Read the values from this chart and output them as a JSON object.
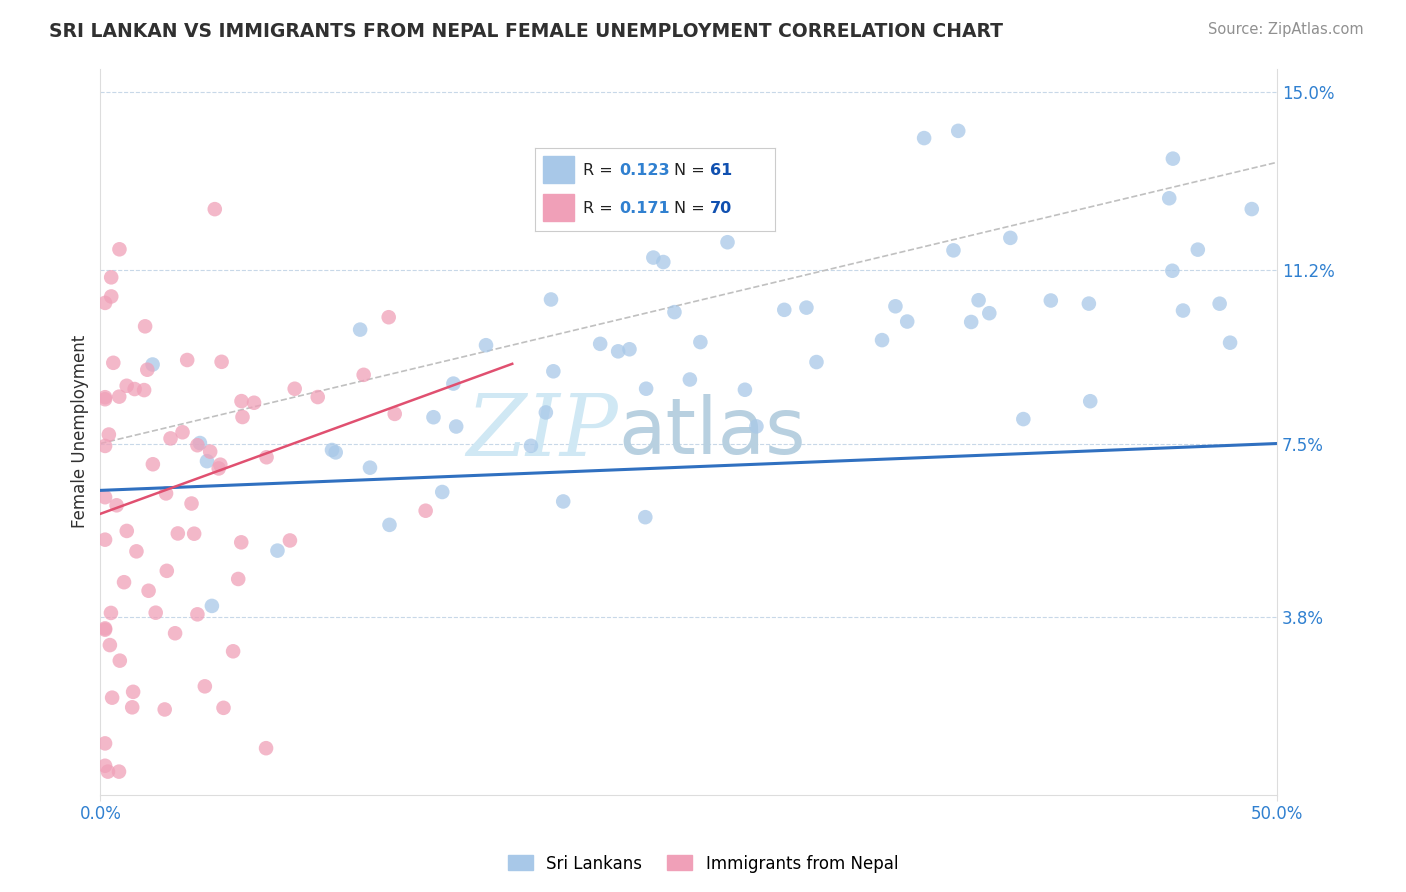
{
  "title": "SRI LANKAN VS IMMIGRANTS FROM NEPAL FEMALE UNEMPLOYMENT CORRELATION CHART",
  "source": "Source: ZipAtlas.com",
  "ylabel": "Female Unemployment",
  "xlim": [
    0.0,
    0.5
  ],
  "ylim": [
    0.0,
    0.155
  ],
  "yticks": [
    0.038,
    0.075,
    0.112,
    0.15
  ],
  "ytick_labels": [
    "3.8%",
    "7.5%",
    "11.2%",
    "15.0%"
  ],
  "xtick_labels": [
    "0.0%",
    "50.0%"
  ],
  "background_color": "#ffffff",
  "grid_color": "#c8d8e8",
  "sri_lankans_color": "#a8c8e8",
  "nepal_color": "#f0a0b8",
  "sri_line_color": "#3070c0",
  "nepal_line_color": "#e05070",
  "legend_R_color": "#3080d0",
  "legend_N_color": "#1050b0",
  "title_color": "#303030",
  "source_color": "#909090",
  "ylabel_color": "#303030",
  "tick_color": "#3080d0",
  "watermark_color": "#d0e8f4",
  "sri_R": 0.123,
  "sri_N": 61,
  "nepal_R": 0.171,
  "nepal_N": 70,
  "sri_label": "Sri Lankans",
  "nepal_label": "Immigrants from Nepal"
}
